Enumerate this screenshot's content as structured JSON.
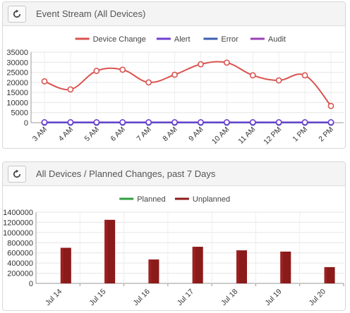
{
  "panels": [
    {
      "title": "Event Stream (All Devices)",
      "refresh_icon": "refresh-icon",
      "chart_data": {
        "type": "line",
        "title": "",
        "xlabel": "",
        "ylabel": "",
        "categories": [
          "3 AM",
          "4 AM",
          "5 AM",
          "6 AM",
          "7 AM",
          "8 AM",
          "9 AM",
          "10 AM",
          "11 AM",
          "12 PM",
          "1 PM",
          "2 PM"
        ],
        "ylim": [
          0,
          35000
        ],
        "yticks": [
          0,
          5000,
          10000,
          15000,
          20000,
          25000,
          30000,
          35000
        ],
        "grid": true,
        "legend_position": "top-center",
        "series": [
          {
            "name": "Device Change",
            "color": "#d9534f",
            "values": [
              20500,
              16500,
              25700,
              26300,
              20000,
              23800,
              29000,
              29800,
              23500,
              21000,
              23500,
              8300
            ]
          },
          {
            "name": "Alert",
            "color": "#6f3fcf",
            "values": [
              200,
              200,
              200,
              200,
              200,
              200,
              200,
              200,
              200,
              200,
              200,
              200
            ]
          },
          {
            "name": "Error",
            "color": "#3a5fb0",
            "values": [
              0,
              0,
              0,
              0,
              0,
              0,
              0,
              0,
              0,
              0,
              0,
              0
            ]
          },
          {
            "name": "Audit",
            "color": "#9b3fb5",
            "values": [
              0,
              0,
              0,
              0,
              0,
              0,
              0,
              0,
              0,
              0,
              0,
              0
            ]
          }
        ]
      }
    },
    {
      "title": "All Devices / Planned Changes, past 7 Days",
      "refresh_icon": "refresh-icon",
      "chart_data": {
        "type": "bar",
        "title": "",
        "xlabel": "",
        "ylabel": "",
        "categories": [
          "Jul 14",
          "Jul 15",
          "Jul 16",
          "Jul 17",
          "Jul 18",
          "Jul 19",
          "Jul 20"
        ],
        "ylim": [
          0,
          1400000
        ],
        "yticks": [
          0,
          200000,
          400000,
          600000,
          800000,
          1000000,
          1200000,
          1400000
        ],
        "grid": true,
        "legend_position": "top-center",
        "series": [
          {
            "name": "Planned",
            "color": "#2e9e3e",
            "values": [
              0,
              0,
              0,
              0,
              0,
              0,
              0
            ]
          },
          {
            "name": "Unplanned",
            "color": "#8b1a1a",
            "values": [
              700000,
              1250000,
              470000,
              720000,
              650000,
              625000,
              320000
            ]
          }
        ]
      }
    }
  ]
}
